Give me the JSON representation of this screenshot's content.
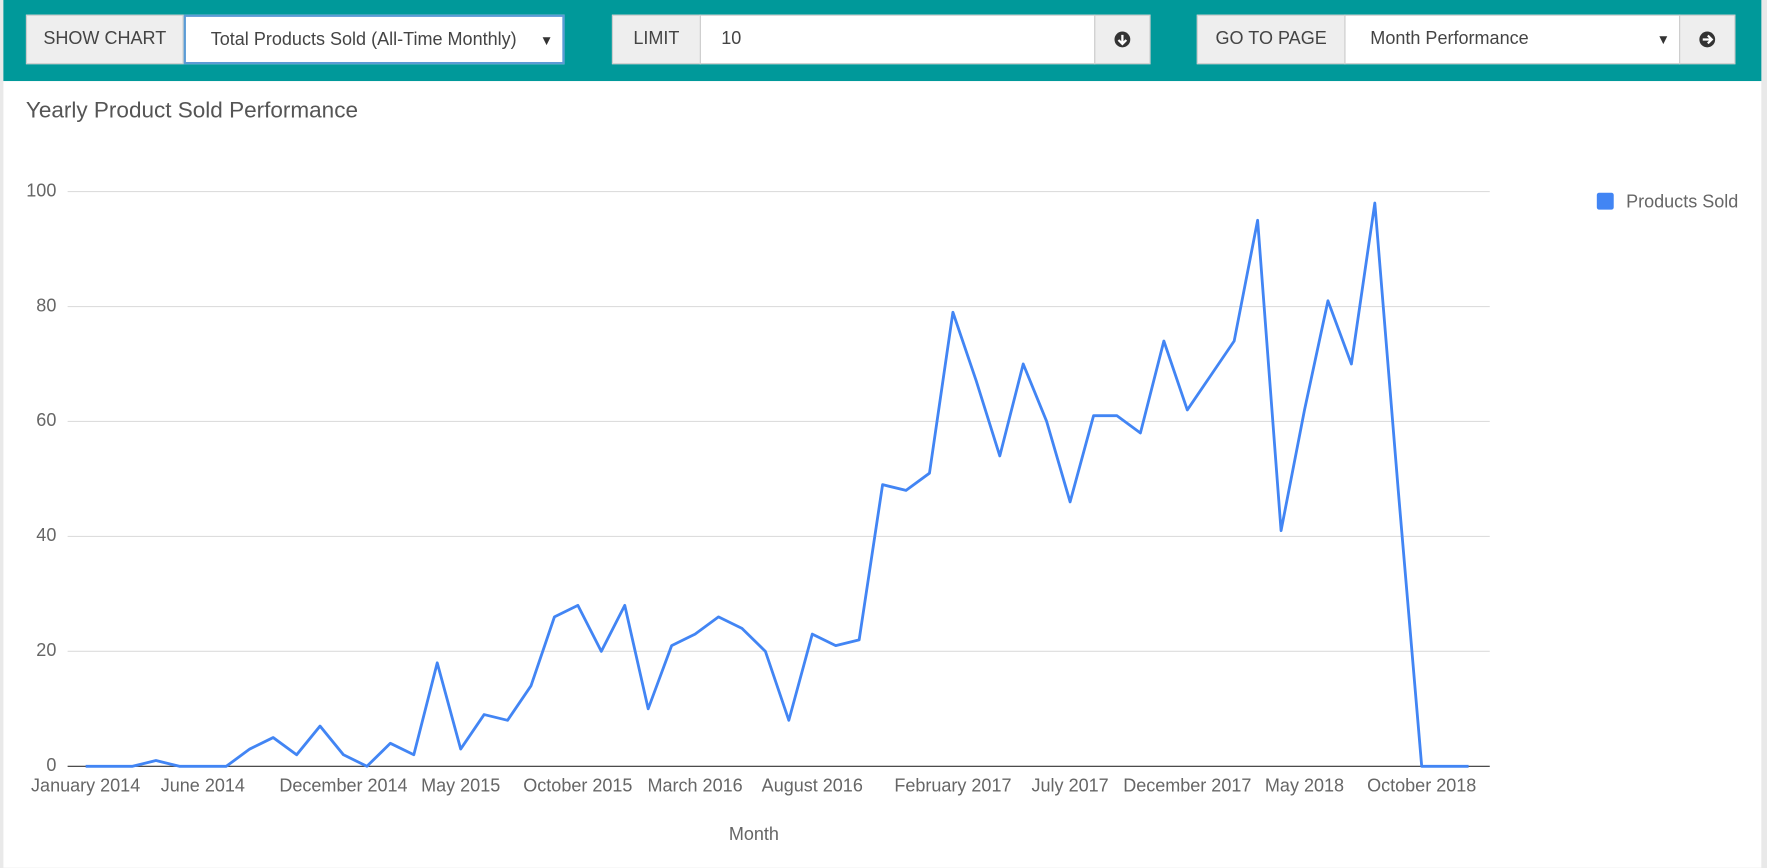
{
  "toolbar": {
    "show_chart_label": "SHOW CHART",
    "chart_select": "Total Products Sold (All-Time Monthly)",
    "limit_label": "LIMIT",
    "limit_value": "10",
    "goto_label": "GO TO PAGE",
    "goto_select": "Month Performance"
  },
  "chart_data": {
    "type": "line",
    "title": "Yearly Product Sold Performance",
    "x_label": "Month",
    "categories": [
      "January 2014",
      null,
      null,
      null,
      null,
      "June 2014",
      null,
      null,
      null,
      null,
      null,
      "December 2014",
      null,
      null,
      null,
      null,
      "May 2015",
      null,
      null,
      null,
      null,
      "October 2015",
      null,
      null,
      null,
      null,
      "March 2016",
      null,
      null,
      null,
      null,
      "August 2016",
      null,
      null,
      null,
      null,
      null,
      "February 2017",
      null,
      null,
      null,
      null,
      "July 2017",
      null,
      null,
      null,
      null,
      "December 2017",
      null,
      null,
      null,
      null,
      "May 2018",
      null,
      null,
      null,
      null,
      "October 2018",
      null,
      null
    ],
    "series": [
      {
        "name": "Products Sold",
        "color": "#4285f4",
        "values": [
          0,
          0,
          0,
          1,
          0,
          0,
          0,
          3,
          5,
          2,
          7,
          2,
          0,
          4,
          2,
          18,
          3,
          9,
          8,
          14,
          26,
          28,
          20,
          28,
          10,
          21,
          23,
          26,
          24,
          20,
          8,
          23,
          21,
          22,
          49,
          48,
          51,
          79,
          67,
          54,
          70,
          60,
          46,
          61,
          61,
          58,
          74,
          62,
          68,
          74,
          95,
          41,
          62,
          81,
          70,
          98,
          48,
          0,
          0,
          0
        ]
      }
    ],
    "ylim": [
      0,
      100
    ],
    "yticks": [
      0,
      20,
      40,
      60,
      80,
      100
    ],
    "grid": true,
    "legend": "top-right"
  }
}
